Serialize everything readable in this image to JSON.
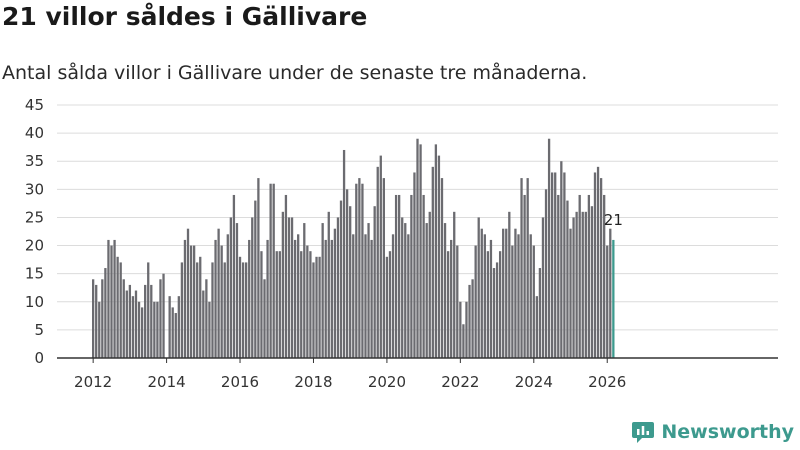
{
  "brand": {
    "name": "Newsworthy",
    "color": "#3d9a8e"
  },
  "chart_data": {
    "type": "bar",
    "title": "21 villor såldes i Gällivare",
    "subtitle": "Antal sålda villor i Gällivare under de senaste tre månaderna.",
    "xlabel": "",
    "ylabel": "",
    "ylim": [
      0,
      45
    ],
    "yticks": [
      0,
      5,
      10,
      15,
      20,
      25,
      30,
      35,
      40,
      45
    ],
    "xticks": [
      "2012",
      "2014",
      "2016",
      "2018",
      "2020",
      "2022",
      "2024",
      "2026"
    ],
    "first_year": 2012,
    "grid": true,
    "bar_color": "#6b6b70",
    "highlight_color": "#3d9a8e",
    "series": [
      {
        "name": "Sålda villor",
        "values": [
          14,
          13,
          10,
          14,
          16,
          21,
          20,
          21,
          18,
          17,
          14,
          12,
          13,
          11,
          12,
          10,
          9,
          13,
          17,
          13,
          10,
          10,
          14,
          15,
          0,
          11,
          9,
          8,
          11,
          17,
          21,
          23,
          20,
          20,
          17,
          18,
          12,
          14,
          10,
          17,
          21,
          23,
          20,
          17,
          22,
          25,
          29,
          24,
          18,
          17,
          17,
          21,
          25,
          28,
          32,
          19,
          14,
          21,
          31,
          31,
          19,
          19,
          26,
          29,
          25,
          25,
          21,
          22,
          19,
          24,
          20,
          19,
          17,
          18,
          18,
          24,
          21,
          26,
          21,
          23,
          25,
          28,
          37,
          30,
          27,
          22,
          31,
          32,
          31,
          22,
          24,
          21,
          27,
          34,
          36,
          32,
          18,
          19,
          22,
          29,
          29,
          25,
          24,
          22,
          29,
          33,
          39,
          38,
          29,
          24,
          26,
          34,
          38,
          36,
          32,
          24,
          19,
          21,
          26,
          20,
          10,
          6,
          10,
          13,
          14,
          20,
          25,
          23,
          22,
          19,
          21,
          16,
          17,
          19,
          23,
          23,
          26,
          20,
          23,
          22,
          32,
          29,
          32,
          22,
          20,
          11,
          16,
          25,
          30,
          39,
          33,
          33,
          29,
          35,
          33,
          28,
          23,
          25,
          26,
          29,
          26,
          26,
          29,
          27,
          33,
          34,
          32,
          29,
          20,
          23,
          21
        ]
      }
    ],
    "annotation": {
      "label": "21",
      "value": 21
    }
  }
}
